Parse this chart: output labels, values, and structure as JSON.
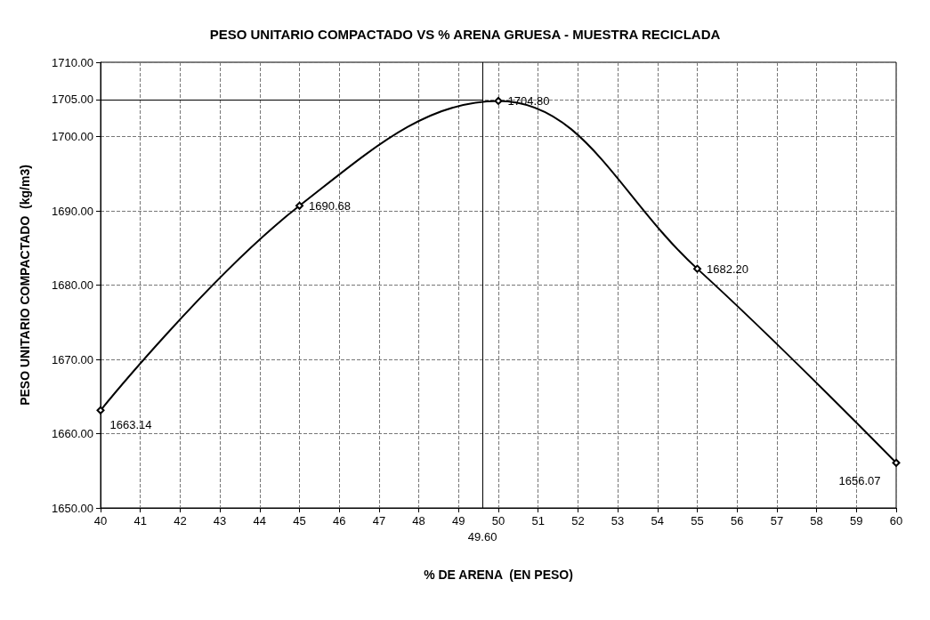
{
  "chart_data": {
    "type": "line",
    "title": "PESO UNITARIO COMPACTADO VS % ARENA GRUESA - MUESTRA RECICLADA",
    "xlabel": "% DE ARENA  (EN PESO)",
    "ylabel": "PESO UNITARIO COMPACTADO  (kg/m3)",
    "x": [
      40,
      45,
      50,
      55,
      60
    ],
    "series": [
      {
        "color": "#000000",
        "values": [
          1663.14,
          1690.68,
          1704.8,
          1682.2,
          1656.07
        ],
        "value_labels": [
          "1663.14",
          "1690.68",
          "1704.80",
          "1682.20",
          "1656.07"
        ]
      }
    ],
    "xlim": [
      40,
      60
    ],
    "xticks": [
      40,
      41,
      42,
      43,
      44,
      45,
      46,
      47,
      48,
      49,
      50,
      51,
      52,
      53,
      54,
      55,
      56,
      57,
      58,
      59,
      60
    ],
    "ylim": [
      1650,
      1710
    ],
    "yticks": [
      {
        "value": 1650,
        "label": "1650.00"
      },
      {
        "value": 1660,
        "label": "1660.00"
      },
      {
        "value": 1670,
        "label": "1670.00"
      },
      {
        "value": 1680,
        "label": "1680.00"
      },
      {
        "value": 1690,
        "label": "1690.00"
      },
      {
        "value": 1700,
        "label": "1700.00"
      },
      {
        "value": 1705,
        "label": "1705.00"
      },
      {
        "value": 1710,
        "label": "1710.00"
      }
    ],
    "ref_lines": [
      {
        "axis": "x",
        "value": 49.6,
        "label": "49.60"
      },
      {
        "axis": "y",
        "value": 1705
      }
    ],
    "grid": true,
    "marker": "diamond",
    "line_style": "solid"
  }
}
